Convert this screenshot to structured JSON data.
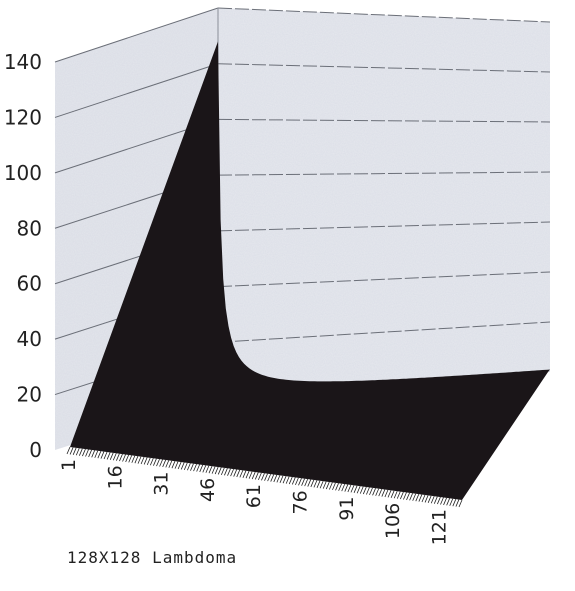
{
  "caption": "128X128 Lambdoma",
  "chart_data": {
    "type": "area",
    "grid": true,
    "ylim": [
      0,
      140
    ],
    "yticks": [
      0,
      20,
      40,
      60,
      80,
      100,
      120,
      140
    ],
    "xticks": [
      "1",
      "16",
      "31",
      "46",
      "61",
      "76",
      "91",
      "106",
      "121"
    ],
    "x_range": [
      1,
      128
    ],
    "surface_peak": {
      "x": 1,
      "value": 128
    },
    "colors": {
      "surface": "#1a1518",
      "walls": "#e4e6ec",
      "grid": "#6b6f78"
    }
  }
}
